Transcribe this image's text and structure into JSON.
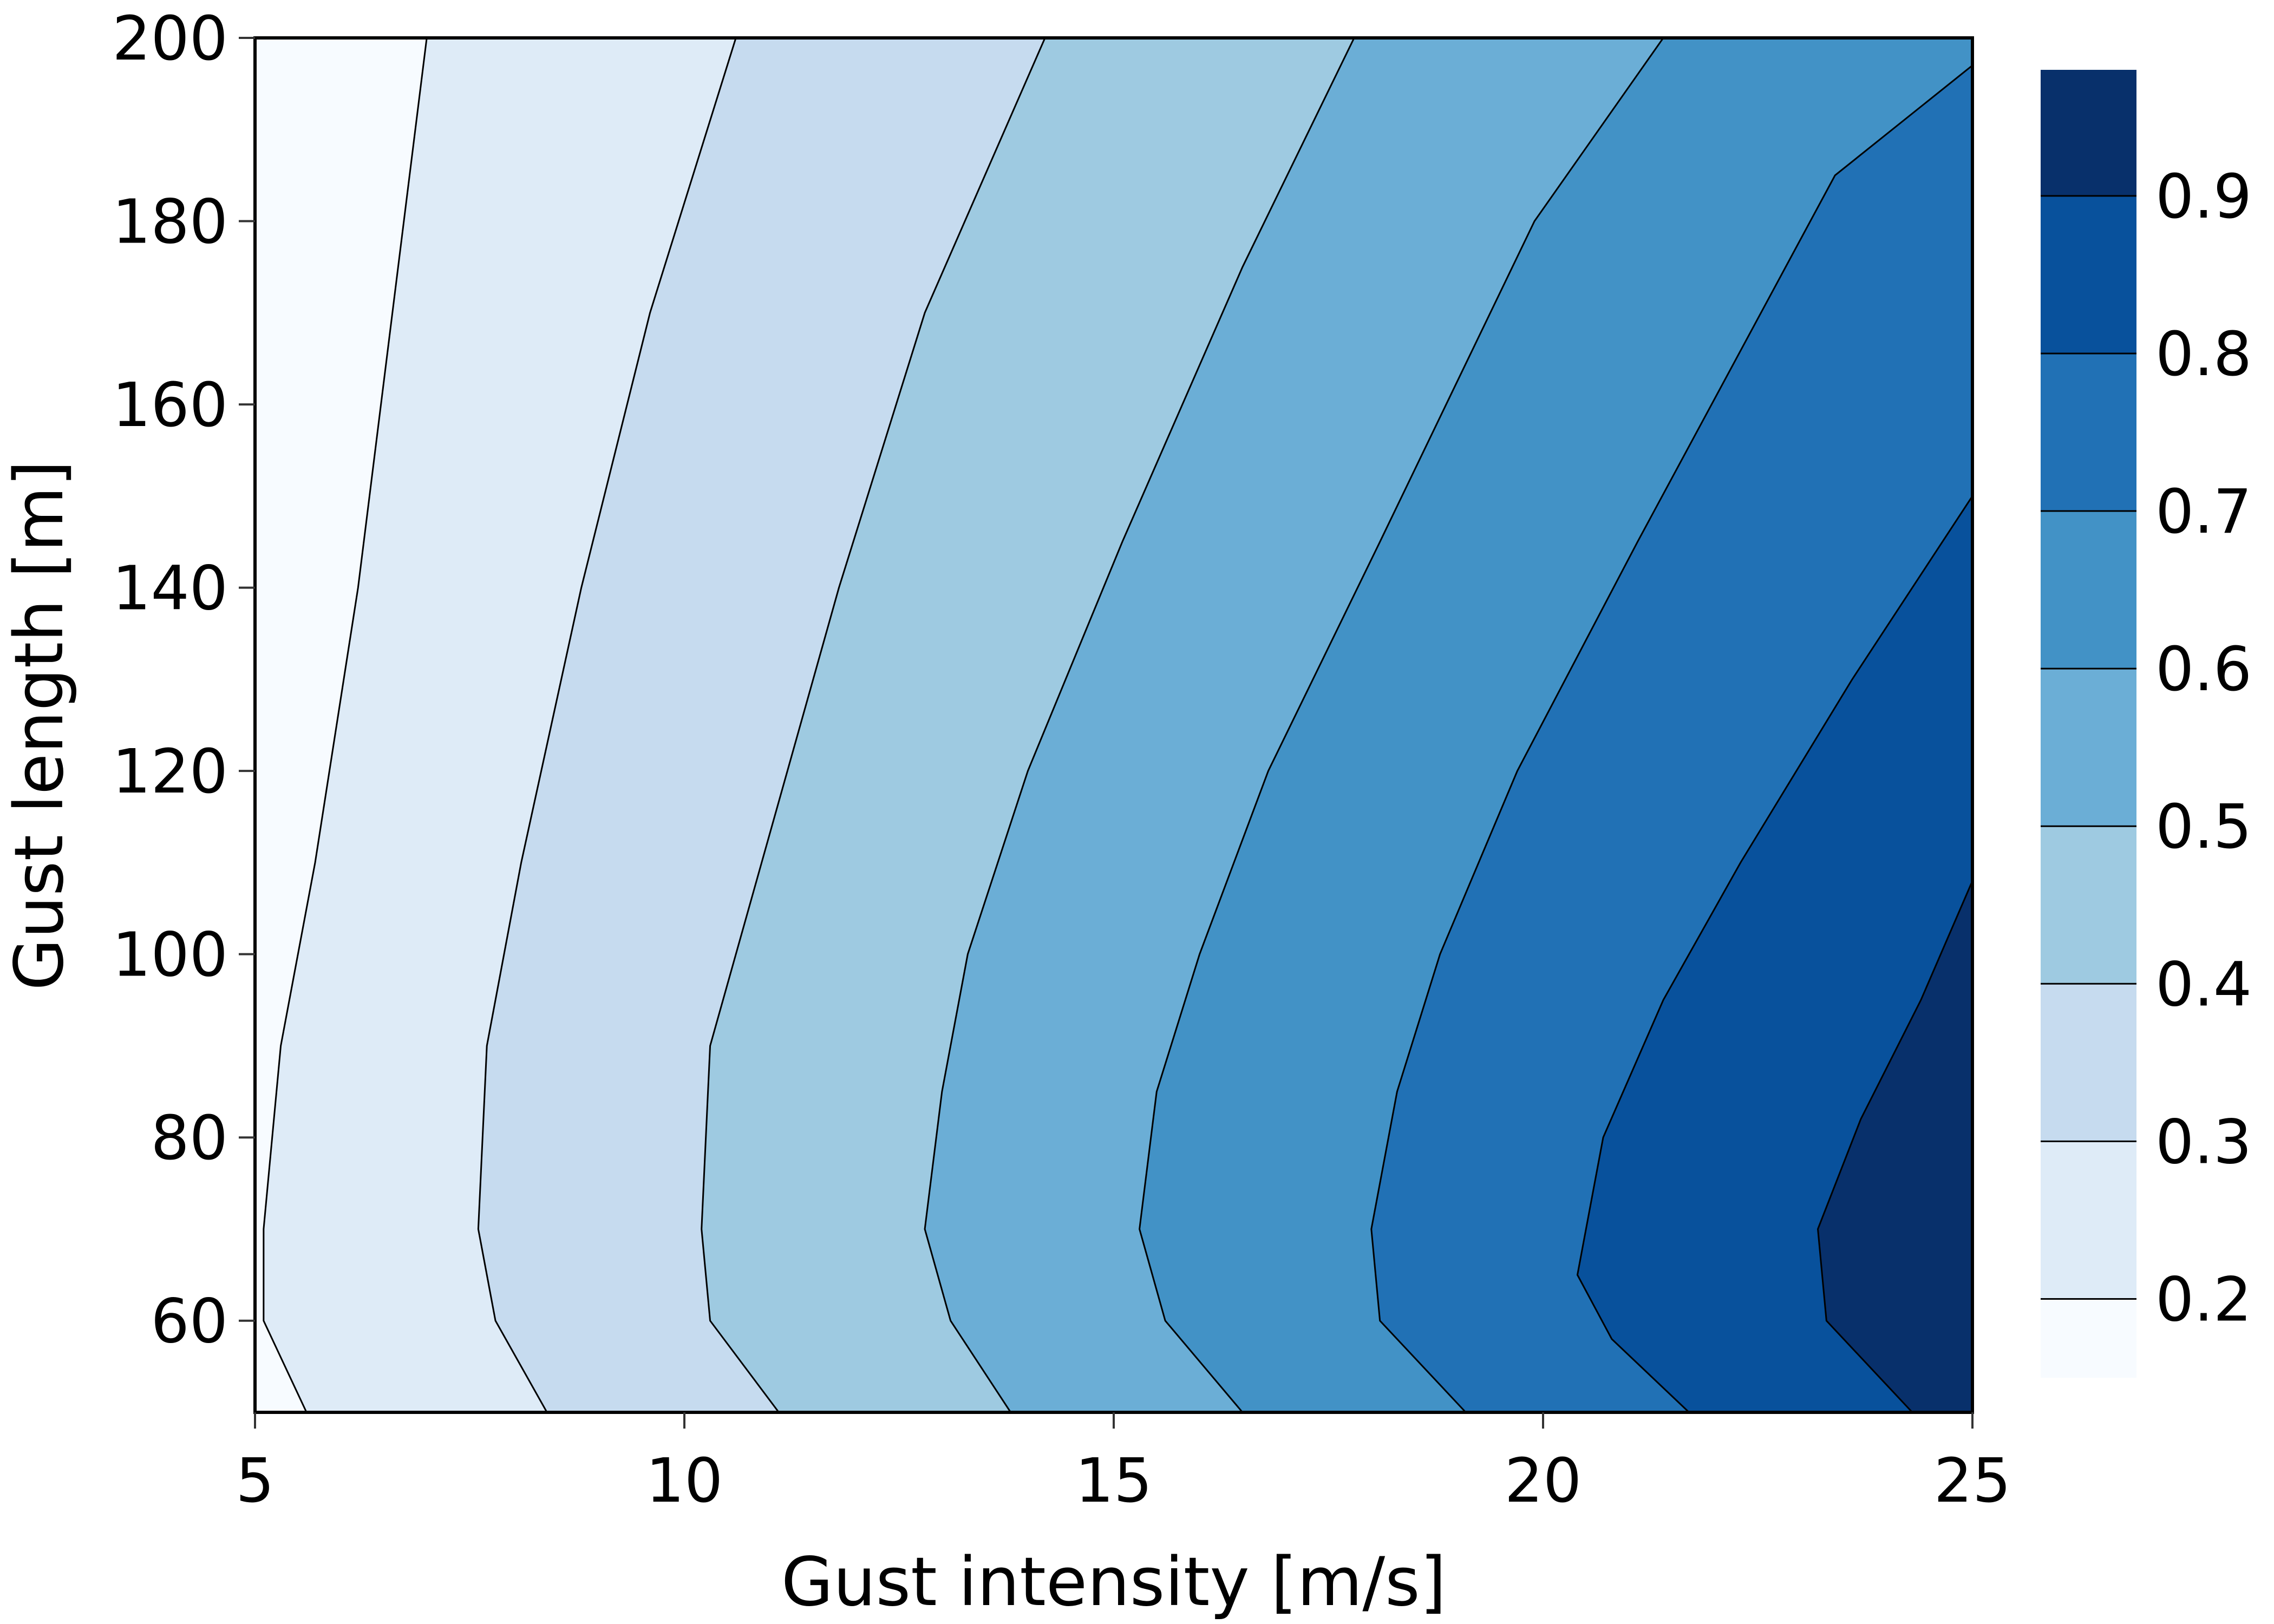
{
  "chart_data": {
    "type": "contour",
    "title": "",
    "xlabel": "Gust intensity [m/s]",
    "ylabel": "Gust length [m]",
    "xlim": [
      5,
      25
    ],
    "ylim": [
      50,
      200
    ],
    "xticks": [
      5,
      10,
      15,
      20,
      25
    ],
    "xtick_labels": [
      "5",
      "10",
      "15",
      "20",
      "25"
    ],
    "yticks": [
      60,
      80,
      100,
      120,
      140,
      160,
      180,
      200
    ],
    "ytick_labels": [
      "60",
      "80",
      "100",
      "120",
      "140",
      "160",
      "180",
      "200"
    ],
    "grid": false,
    "colormap": "Blues",
    "levels": [
      0.15,
      0.2,
      0.3,
      0.4,
      0.5,
      0.6,
      0.7,
      0.8,
      0.9,
      0.98
    ],
    "colorbar": {
      "position": "right",
      "tick_values": [
        0.2,
        0.3,
        0.4,
        0.5,
        0.6,
        0.7,
        0.8,
        0.9
      ],
      "tick_labels": [
        "0.2",
        "0.3",
        "0.4",
        "0.5",
        "0.6",
        "0.7",
        "0.8",
        "0.9"
      ],
      "band_colors": [
        "#f7fbff",
        "#deebf7",
        "#c6dbef",
        "#9ecae1",
        "#6baed6",
        "#4292c6",
        "#2171b5",
        "#08519c",
        "#08306b"
      ]
    },
    "contour_lines": [
      {
        "level": 0.2,
        "points": [
          [
            5.6,
            50
          ],
          [
            5.1,
            60
          ],
          [
            5.1,
            70
          ],
          [
            5.3,
            90
          ],
          [
            5.7,
            110
          ],
          [
            6.2,
            140
          ],
          [
            6.6,
            170
          ],
          [
            7.0,
            200
          ]
        ]
      },
      {
        "level": 0.3,
        "points": [
          [
            8.4,
            50
          ],
          [
            7.8,
            60
          ],
          [
            7.6,
            70
          ],
          [
            7.7,
            90
          ],
          [
            8.1,
            110
          ],
          [
            8.8,
            140
          ],
          [
            9.6,
            170
          ],
          [
            10.6,
            200
          ]
        ]
      },
      {
        "level": 0.4,
        "points": [
          [
            11.1,
            50
          ],
          [
            10.3,
            60
          ],
          [
            10.2,
            70
          ],
          [
            10.3,
            90
          ],
          [
            10.9,
            110
          ],
          [
            11.8,
            140
          ],
          [
            12.8,
            170
          ],
          [
            14.2,
            200
          ]
        ]
      },
      {
        "level": 0.5,
        "points": [
          [
            13.8,
            50
          ],
          [
            13.1,
            60
          ],
          [
            12.8,
            70
          ],
          [
            13.0,
            85
          ],
          [
            13.3,
            100
          ],
          [
            14.0,
            120
          ],
          [
            15.1,
            145
          ],
          [
            16.5,
            175
          ],
          [
            17.8,
            200
          ]
        ]
      },
      {
        "level": 0.6,
        "points": [
          [
            16.5,
            50
          ],
          [
            15.6,
            60
          ],
          [
            15.3,
            70
          ],
          [
            15.5,
            85
          ],
          [
            16.0,
            100
          ],
          [
            16.8,
            120
          ],
          [
            18.1,
            145
          ],
          [
            19.9,
            180
          ],
          [
            21.4,
            200
          ]
        ]
      },
      {
        "level": 0.7,
        "points": [
          [
            19.1,
            50
          ],
          [
            18.1,
            60
          ],
          [
            18.0,
            70
          ],
          [
            18.3,
            85
          ],
          [
            18.8,
            100
          ],
          [
            19.7,
            120
          ],
          [
            21.1,
            145
          ],
          [
            23.4,
            185
          ],
          [
            25.0,
            197
          ]
        ]
      },
      {
        "level": 0.8,
        "points": [
          [
            21.7,
            50
          ],
          [
            20.8,
            58
          ],
          [
            20.4,
            65
          ],
          [
            20.7,
            80
          ],
          [
            21.4,
            95
          ],
          [
            22.3,
            110
          ],
          [
            23.6,
            130
          ],
          [
            25.0,
            150
          ]
        ]
      },
      {
        "level": 0.9,
        "points": [
          [
            24.3,
            50
          ],
          [
            23.3,
            60
          ],
          [
            23.2,
            70
          ],
          [
            23.7,
            82
          ],
          [
            24.4,
            95
          ],
          [
            25.0,
            108
          ]
        ]
      }
    ],
    "description": "Filled contour of a quantity (0.15-0.98) vs gust intensity and gust length; increases with gust intensity, maximum near 25 m/s and ~65 m gust length."
  }
}
